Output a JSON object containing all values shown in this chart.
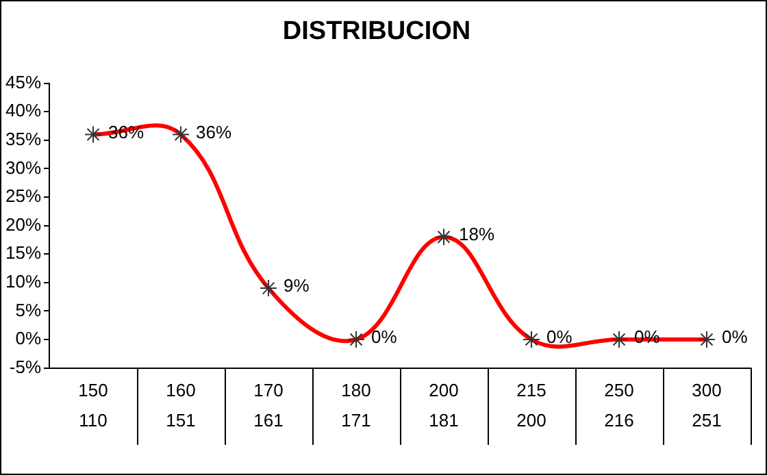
{
  "chart_data": {
    "type": "line",
    "title": "DISTRIBUCION",
    "categories": [
      "150\n110",
      "160\n151",
      "170\n161",
      "180\n171",
      "200\n181",
      "215\n200",
      "250\n216",
      "300\n251"
    ],
    "series": [
      {
        "color": "#ff0000",
        "values": [
          36,
          36,
          9,
          0,
          18,
          0,
          0,
          0
        ],
        "value_labels": [
          "36%",
          "36%",
          "9%",
          "0%",
          "18%",
          "0%",
          "0%",
          "0%"
        ]
      }
    ],
    "ylim": [
      -5,
      45
    ],
    "yticks": [
      {
        "value": -5,
        "label": "-5%"
      },
      {
        "value": 0,
        "label": "0%"
      },
      {
        "value": 5,
        "label": "5%"
      },
      {
        "value": 10,
        "label": "10%"
      },
      {
        "value": 15,
        "label": "15%"
      },
      {
        "value": 20,
        "label": "20%"
      },
      {
        "value": 25,
        "label": "25%"
      },
      {
        "value": 30,
        "label": "30%"
      },
      {
        "value": 35,
        "label": "35%"
      },
      {
        "value": 40,
        "label": "40%"
      },
      {
        "value": 45,
        "label": "45%"
      }
    ],
    "grid": false,
    "legend": false,
    "marker": "cross",
    "line_style": "solid"
  }
}
